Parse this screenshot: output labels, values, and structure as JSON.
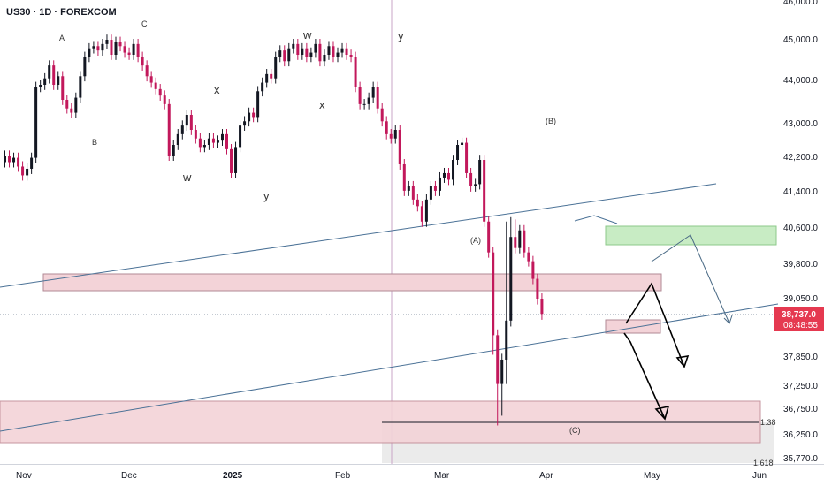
{
  "header": {
    "symbol_title": "US30 · 1D · FOREXCOM"
  },
  "price_axis": {
    "ticks": [
      "46,000.0",
      "45,000.0",
      "44,000.0",
      "43,000.0",
      "42,200.0",
      "41,400.0",
      "40,600.0",
      "39,800.0",
      "39,050.0",
      "37,850.0",
      "37,250.0",
      "36,750.0",
      "36,250.0",
      "35,770.0"
    ],
    "current_price": "38,737.0",
    "countdown": "08:48:55",
    "fib_label": "1.38",
    "fib_label_lower": "1.618"
  },
  "time_axis": {
    "ticks": [
      "Nov",
      "Dec",
      "2025",
      "Feb",
      "Mar",
      "Apr",
      "May",
      "Jun"
    ]
  },
  "wave_labels": [
    {
      "text": "A"
    },
    {
      "text": "B"
    },
    {
      "text": "C"
    },
    {
      "text": "w"
    },
    {
      "text": "x"
    },
    {
      "text": "y"
    },
    {
      "text": "w"
    },
    {
      "text": "x"
    },
    {
      "text": "y"
    },
    {
      "text": "(A)"
    },
    {
      "text": "(B)"
    },
    {
      "text": "(C)"
    }
  ],
  "colors": {
    "bull": "#131722",
    "bear": "#c2185b",
    "trendline": "#4a7196",
    "zone_pink": "#f3d3d8",
    "zone_green": "#c8ecc4",
    "price_badge": "#e53950",
    "projection": "#000000",
    "projection_alt": "#4a6a85"
  },
  "chart_data": {
    "type": "candlestick",
    "title": "US30 · 1D · FOREXCOM",
    "xlabel": "",
    "ylabel": "",
    "ylim": [
      35770,
      46000
    ],
    "x_ticks": [
      "Nov",
      "Dec",
      "2025",
      "Feb",
      "Mar",
      "Apr",
      "May",
      "Jun"
    ],
    "y_ticks": [
      46000,
      45000,
      44000,
      43000,
      42200,
      41400,
      40600,
      39800,
      39050,
      37850,
      37250,
      36750,
      36250,
      35770
    ],
    "last_price": 38737.0,
    "closes": [
      42300,
      42150,
      42250,
      42050,
      41850,
      42000,
      42250,
      43900,
      43950,
      44100,
      44400,
      43950,
      44150,
      43600,
      43400,
      43300,
      43650,
      44150,
      44600,
      44800,
      44850,
      44750,
      44900,
      45000,
      44650,
      44950,
      44850,
      44700,
      44650,
      44900,
      44600,
      44400,
      44150,
      44000,
      43850,
      43700,
      43500,
      42300,
      42550,
      42800,
      43000,
      43250,
      42900,
      42700,
      42500,
      42550,
      42700,
      42600,
      42650,
      42800,
      42450,
      41900,
      42500,
      43000,
      43100,
      43300,
      43200,
      43800,
      44000,
      44200,
      44100,
      44600,
      44750,
      44500,
      44800,
      44900,
      44650,
      44800,
      44600,
      44700,
      44900,
      44500,
      44650,
      44850,
      44600,
      44700,
      44800,
      44650,
      44600,
      43900,
      43500,
      43500,
      43650,
      43900,
      43400,
      43100,
      42800,
      42700,
      42900,
      42100,
      41500,
      41600,
      41300,
      41150,
      40800,
      41300,
      41600,
      41500,
      41800,
      41900,
      41750,
      42200,
      42550,
      42600,
      41900,
      41600,
      41650,
      42200,
      40800,
      40100,
      38300,
      37300,
      37800,
      38600,
      40450,
      40200,
      40600,
      40100,
      39900,
      39500,
      39050,
      38737
    ],
    "annotations": [
      "A",
      "B",
      "C",
      "w",
      "x",
      "y",
      "w",
      "x",
      "y",
      "(A)",
      "(B)",
      "(C)"
    ]
  }
}
